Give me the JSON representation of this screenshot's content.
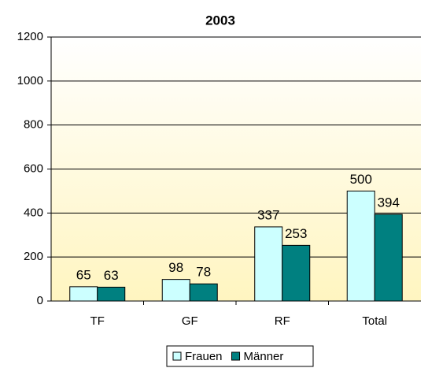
{
  "chart_data": {
    "type": "bar",
    "title": "2003",
    "categories": [
      "TF",
      "GF",
      "RF",
      "Total"
    ],
    "series": [
      {
        "name": "Frauen",
        "color": "#ccffff",
        "values": [
          65,
          98,
          337,
          500
        ]
      },
      {
        "name": "Männer",
        "color": "#008080",
        "values": [
          63,
          78,
          253,
          394
        ]
      }
    ],
    "ylim": [
      0,
      1200
    ],
    "yticks": [
      0,
      200,
      400,
      600,
      800,
      1000,
      1200
    ],
    "grid": true,
    "legend": "bottom"
  }
}
